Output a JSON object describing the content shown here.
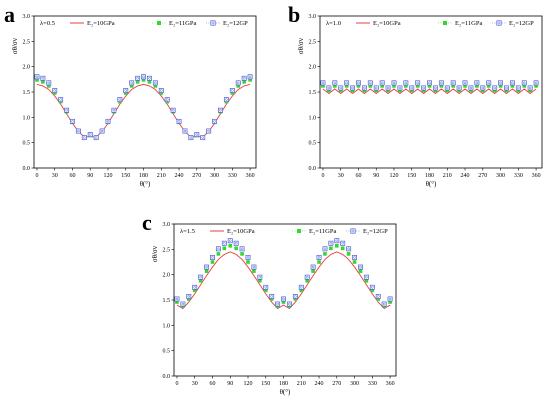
{
  "panel_letters": [
    "a",
    "b",
    "c"
  ],
  "chart_data": [
    {
      "type": "line",
      "panel": "a",
      "annotation": "λ=0.5",
      "xlabel": "θ(°)",
      "ylabel": "σθ/σv",
      "xlim": [
        -5,
        370
      ],
      "ylim": [
        0,
        3.0
      ],
      "xticks": [
        0,
        30,
        60,
        90,
        120,
        150,
        180,
        210,
        240,
        270,
        300,
        330,
        360
      ],
      "yticks": [
        0.0,
        0.5,
        1.0,
        1.5,
        2.0,
        2.5,
        3.0
      ],
      "legend_placement": "top",
      "x": [
        0,
        10,
        20,
        30,
        40,
        50,
        60,
        70,
        80,
        90,
        100,
        110,
        120,
        130,
        140,
        150,
        160,
        170,
        180,
        190,
        200,
        210,
        220,
        230,
        240,
        250,
        260,
        270,
        280,
        290,
        300,
        310,
        320,
        330,
        340,
        350,
        360
      ],
      "series": [
        {
          "name": "E₂=10GPa",
          "style": "line",
          "color": "#e8403c",
          "values": [
            1.65,
            1.62,
            1.55,
            1.42,
            1.26,
            1.07,
            0.88,
            0.72,
            0.61,
            0.62,
            0.61,
            0.72,
            0.88,
            1.07,
            1.26,
            1.42,
            1.55,
            1.62,
            1.65,
            1.62,
            1.55,
            1.42,
            1.26,
            1.07,
            0.88,
            0.72,
            0.61,
            0.62,
            0.61,
            0.72,
            0.88,
            1.07,
            1.26,
            1.42,
            1.55,
            1.62,
            1.65
          ]
        },
        {
          "name": "E₂=11GPa",
          "style": "square",
          "color": "#33d633",
          "values": [
            1.74,
            1.7,
            1.62,
            1.48,
            1.31,
            1.11,
            0.9,
            0.72,
            0.6,
            0.64,
            0.6,
            0.72,
            0.9,
            1.11,
            1.31,
            1.48,
            1.62,
            1.7,
            1.74,
            1.7,
            1.62,
            1.48,
            1.31,
            1.11,
            0.9,
            0.72,
            0.6,
            0.64,
            0.6,
            0.72,
            0.9,
            1.11,
            1.31,
            1.48,
            1.62,
            1.7,
            1.74
          ]
        },
        {
          "name": "E₂=12GP",
          "style": "circle-square",
          "color": "#4a5fd6",
          "values": [
            1.8,
            1.77,
            1.68,
            1.53,
            1.35,
            1.14,
            0.92,
            0.73,
            0.6,
            0.66,
            0.6,
            0.73,
            0.92,
            1.14,
            1.35,
            1.53,
            1.68,
            1.77,
            1.8,
            1.77,
            1.68,
            1.53,
            1.35,
            1.14,
            0.92,
            0.73,
            0.6,
            0.66,
            0.6,
            0.73,
            0.92,
            1.14,
            1.35,
            1.53,
            1.68,
            1.77,
            1.8
          ]
        }
      ]
    },
    {
      "type": "line",
      "panel": "b",
      "annotation": "λ=1.0",
      "xlabel": "θ(°)",
      "ylabel": "σθ/σv",
      "xlim": [
        -5,
        370
      ],
      "ylim": [
        0,
        3.0
      ],
      "xticks": [
        0,
        30,
        60,
        90,
        120,
        150,
        180,
        210,
        240,
        270,
        300,
        330,
        360
      ],
      "yticks": [
        0.0,
        0.5,
        1.0,
        1.5,
        2.0,
        2.5,
        3.0
      ],
      "legend_placement": "top",
      "x": [
        0,
        10,
        20,
        30,
        40,
        50,
        60,
        70,
        80,
        90,
        100,
        110,
        120,
        130,
        140,
        150,
        160,
        170,
        180,
        190,
        200,
        210,
        220,
        230,
        240,
        250,
        260,
        270,
        280,
        290,
        300,
        310,
        320,
        330,
        340,
        350,
        360
      ],
      "series": [
        {
          "name": "E₂=10GPa",
          "style": "line",
          "color": "#e8403c",
          "values": [
            1.56,
            1.47,
            1.56,
            1.47,
            1.56,
            1.47,
            1.56,
            1.47,
            1.56,
            1.47,
            1.56,
            1.47,
            1.56,
            1.47,
            1.56,
            1.47,
            1.56,
            1.47,
            1.56,
            1.47,
            1.56,
            1.47,
            1.56,
            1.47,
            1.56,
            1.47,
            1.56,
            1.47,
            1.56,
            1.47,
            1.56,
            1.47,
            1.56,
            1.47,
            1.56,
            1.47,
            1.56
          ]
        },
        {
          "name": "E₂=11GPa",
          "style": "square",
          "color": "#33d633",
          "values": [
            1.62,
            1.53,
            1.62,
            1.53,
            1.62,
            1.53,
            1.62,
            1.53,
            1.62,
            1.53,
            1.62,
            1.53,
            1.62,
            1.53,
            1.62,
            1.53,
            1.62,
            1.53,
            1.62,
            1.53,
            1.62,
            1.53,
            1.62,
            1.53,
            1.62,
            1.53,
            1.62,
            1.53,
            1.62,
            1.53,
            1.62,
            1.53,
            1.62,
            1.53,
            1.62,
            1.53,
            1.62
          ]
        },
        {
          "name": "E₂=12GP",
          "style": "circle-square",
          "color": "#4a5fd6",
          "values": [
            1.68,
            1.58,
            1.68,
            1.58,
            1.68,
            1.58,
            1.68,
            1.58,
            1.68,
            1.58,
            1.68,
            1.58,
            1.68,
            1.58,
            1.68,
            1.58,
            1.68,
            1.58,
            1.68,
            1.58,
            1.68,
            1.58,
            1.68,
            1.58,
            1.68,
            1.58,
            1.68,
            1.58,
            1.68,
            1.58,
            1.68,
            1.58,
            1.68,
            1.58,
            1.68,
            1.58,
            1.68
          ]
        }
      ]
    },
    {
      "type": "line",
      "panel": "c",
      "annotation": "λ=1.5",
      "xlabel": "θ(°)",
      "ylabel": "σθ/σv",
      "xlim": [
        -5,
        370
      ],
      "ylim": [
        0,
        3.0
      ],
      "xticks": [
        0,
        30,
        60,
        90,
        120,
        150,
        180,
        210,
        240,
        270,
        300,
        330,
        360
      ],
      "yticks": [
        0.0,
        0.5,
        1.0,
        1.5,
        2.0,
        2.5,
        3.0
      ],
      "legend_placement": "top",
      "x": [
        0,
        10,
        20,
        30,
        40,
        50,
        60,
        70,
        80,
        90,
        100,
        110,
        120,
        130,
        140,
        150,
        160,
        170,
        180,
        190,
        200,
        210,
        220,
        230,
        240,
        250,
        260,
        270,
        280,
        290,
        300,
        310,
        320,
        330,
        340,
        350,
        360
      ],
      "series": [
        {
          "name": "E₂=10GPa",
          "style": "line",
          "color": "#e8403c",
          "values": [
            1.4,
            1.33,
            1.46,
            1.62,
            1.8,
            1.98,
            2.15,
            2.3,
            2.4,
            2.45,
            2.4,
            2.3,
            2.15,
            1.98,
            1.8,
            1.62,
            1.46,
            1.33,
            1.4,
            1.33,
            1.46,
            1.62,
            1.8,
            1.98,
            2.15,
            2.3,
            2.4,
            2.45,
            2.4,
            2.3,
            2.15,
            1.98,
            1.8,
            1.62,
            1.46,
            1.33,
            1.4
          ]
        },
        {
          "name": "E₂=11GPa",
          "style": "square",
          "color": "#33d633",
          "values": [
            1.46,
            1.38,
            1.52,
            1.69,
            1.88,
            2.07,
            2.25,
            2.41,
            2.52,
            2.57,
            2.52,
            2.41,
            2.25,
            2.07,
            1.88,
            1.69,
            1.52,
            1.38,
            1.46,
            1.38,
            1.52,
            1.69,
            1.88,
            2.07,
            2.25,
            2.41,
            2.52,
            2.57,
            2.52,
            2.41,
            2.25,
            2.07,
            1.88,
            1.69,
            1.52,
            1.38,
            1.46
          ]
        },
        {
          "name": "E₂=12GP",
          "style": "circle-square",
          "color": "#4a5fd6",
          "values": [
            1.52,
            1.42,
            1.57,
            1.75,
            1.95,
            2.15,
            2.34,
            2.51,
            2.62,
            2.67,
            2.62,
            2.51,
            2.34,
            2.15,
            1.95,
            1.75,
            1.57,
            1.42,
            1.52,
            1.42,
            1.57,
            1.75,
            1.95,
            2.15,
            2.34,
            2.51,
            2.62,
            2.67,
            2.62,
            2.51,
            2.34,
            2.15,
            1.95,
            1.75,
            1.57,
            1.42,
            1.52
          ]
        }
      ]
    }
  ]
}
